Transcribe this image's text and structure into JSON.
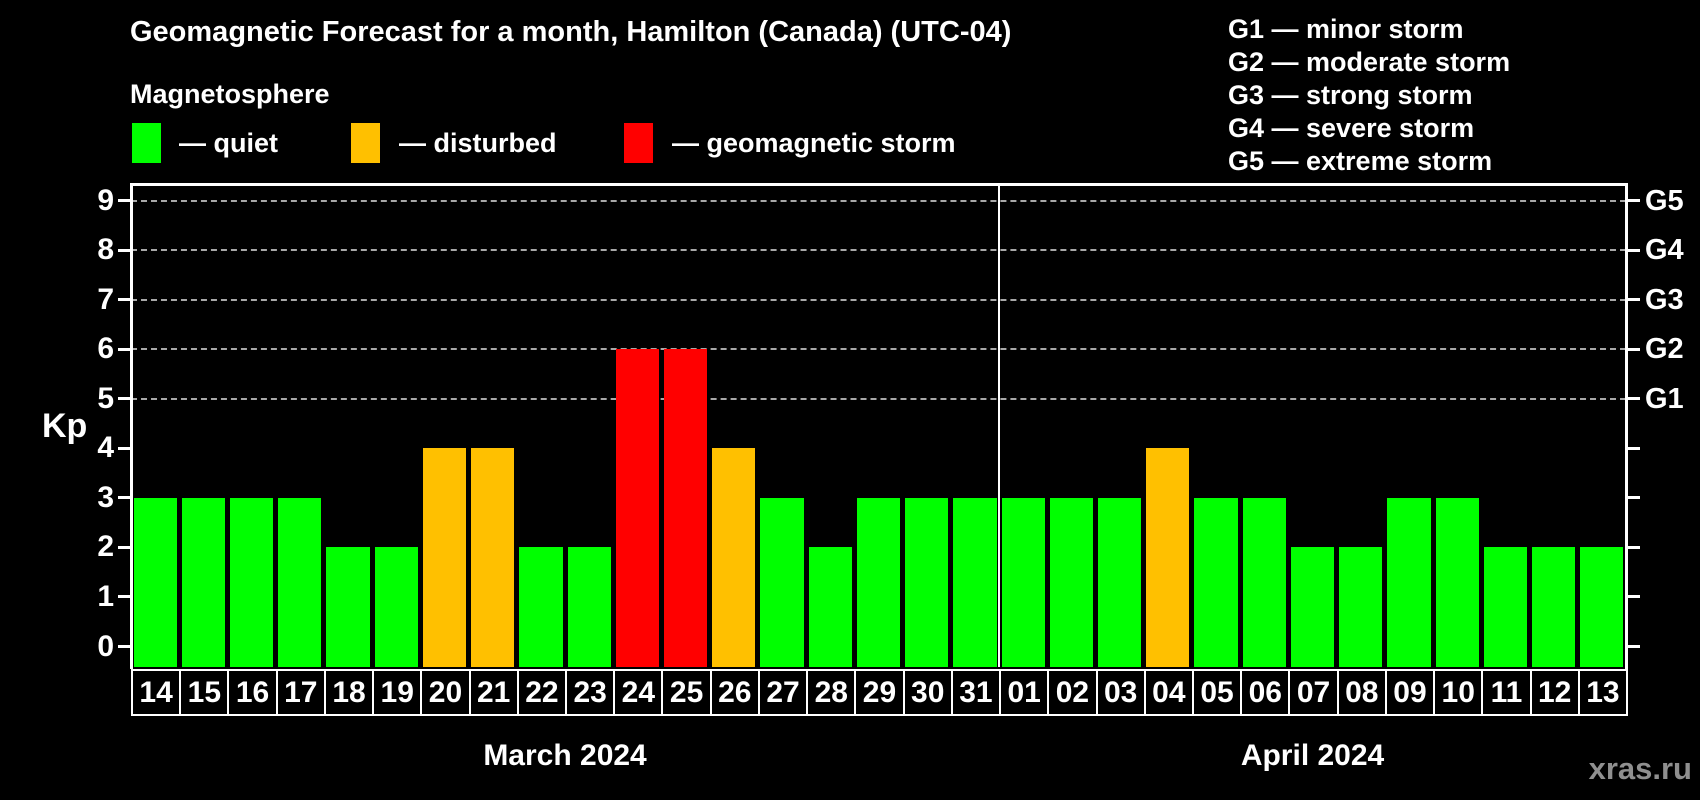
{
  "title": "Geomagnetic Forecast for a month, Hamilton (Canada) (UTC-04)",
  "legend": {
    "heading": "Magnetosphere",
    "items": [
      {
        "key": "quiet",
        "label": "— quiet",
        "color": "#00ff00"
      },
      {
        "key": "disturbed",
        "label": "— disturbed",
        "color": "#ffc000"
      },
      {
        "key": "storm",
        "label": "— geomagnetic storm",
        "color": "#ff0000"
      }
    ]
  },
  "storm_scale": [
    {
      "code": "G1",
      "label": "G1 — minor storm"
    },
    {
      "code": "G2",
      "label": "G2 — moderate storm"
    },
    {
      "code": "G3",
      "label": "G3 — strong storm"
    },
    {
      "code": "G4",
      "label": "G4 — severe storm"
    },
    {
      "code": "G5",
      "label": "G5 — extreme storm"
    }
  ],
  "watermark": "xras.ru",
  "chart_data": {
    "type": "bar",
    "title": "Geomagnetic Forecast for a month, Hamilton (Canada) (UTC-04)",
    "ylabel": "Kp",
    "ylim": [
      -0.4,
      9.4
    ],
    "y_ticks": [
      0,
      1,
      2,
      3,
      4,
      5,
      6,
      7,
      8,
      9
    ],
    "gridlines_at": [
      5,
      6,
      7,
      8,
      9
    ],
    "grid": "dashed horizontal at Kp 5-9 only",
    "legend_position": "top-left",
    "right_axis_labels": [
      {
        "kp": 5,
        "label": "G1"
      },
      {
        "kp": 6,
        "label": "G2"
      },
      {
        "kp": 7,
        "label": "G3"
      },
      {
        "kp": 8,
        "label": "G4"
      },
      {
        "kp": 9,
        "label": "G5"
      }
    ],
    "status_colors": {
      "quiet": "#00ff00",
      "disturbed": "#ffc000",
      "storm": "#ff0000"
    },
    "months": [
      {
        "label": "March 2024",
        "days": [
          {
            "day": "14",
            "kp": 3,
            "status": "quiet"
          },
          {
            "day": "15",
            "kp": 3,
            "status": "quiet"
          },
          {
            "day": "16",
            "kp": 3,
            "status": "quiet"
          },
          {
            "day": "17",
            "kp": 3,
            "status": "quiet"
          },
          {
            "day": "18",
            "kp": 2,
            "status": "quiet"
          },
          {
            "day": "19",
            "kp": 2,
            "status": "quiet"
          },
          {
            "day": "20",
            "kp": 4,
            "status": "disturbed"
          },
          {
            "day": "21",
            "kp": 4,
            "status": "disturbed"
          },
          {
            "day": "22",
            "kp": 2,
            "status": "quiet"
          },
          {
            "day": "23",
            "kp": 2,
            "status": "quiet"
          },
          {
            "day": "24",
            "kp": 6,
            "status": "storm"
          },
          {
            "day": "25",
            "kp": 6,
            "status": "storm"
          },
          {
            "day": "26",
            "kp": 4,
            "status": "disturbed"
          },
          {
            "day": "27",
            "kp": 3,
            "status": "quiet"
          },
          {
            "day": "28",
            "kp": 2,
            "status": "quiet"
          },
          {
            "day": "29",
            "kp": 3,
            "status": "quiet"
          },
          {
            "day": "30",
            "kp": 3,
            "status": "quiet"
          },
          {
            "day": "31",
            "kp": 3,
            "status": "quiet"
          }
        ]
      },
      {
        "label": "April 2024",
        "days": [
          {
            "day": "01",
            "kp": 3,
            "status": "quiet"
          },
          {
            "day": "02",
            "kp": 3,
            "status": "quiet"
          },
          {
            "day": "03",
            "kp": 3,
            "status": "quiet"
          },
          {
            "day": "04",
            "kp": 4,
            "status": "disturbed"
          },
          {
            "day": "05",
            "kp": 3,
            "status": "quiet"
          },
          {
            "day": "06",
            "kp": 3,
            "status": "quiet"
          },
          {
            "day": "07",
            "kp": 2,
            "status": "quiet"
          },
          {
            "day": "08",
            "kp": 2,
            "status": "quiet"
          },
          {
            "day": "09",
            "kp": 3,
            "status": "quiet"
          },
          {
            "day": "10",
            "kp": 3,
            "status": "quiet"
          },
          {
            "day": "11",
            "kp": 2,
            "status": "quiet"
          },
          {
            "day": "12",
            "kp": 2,
            "status": "quiet"
          },
          {
            "day": "13",
            "kp": 2,
            "status": "quiet"
          }
        ]
      }
    ]
  }
}
